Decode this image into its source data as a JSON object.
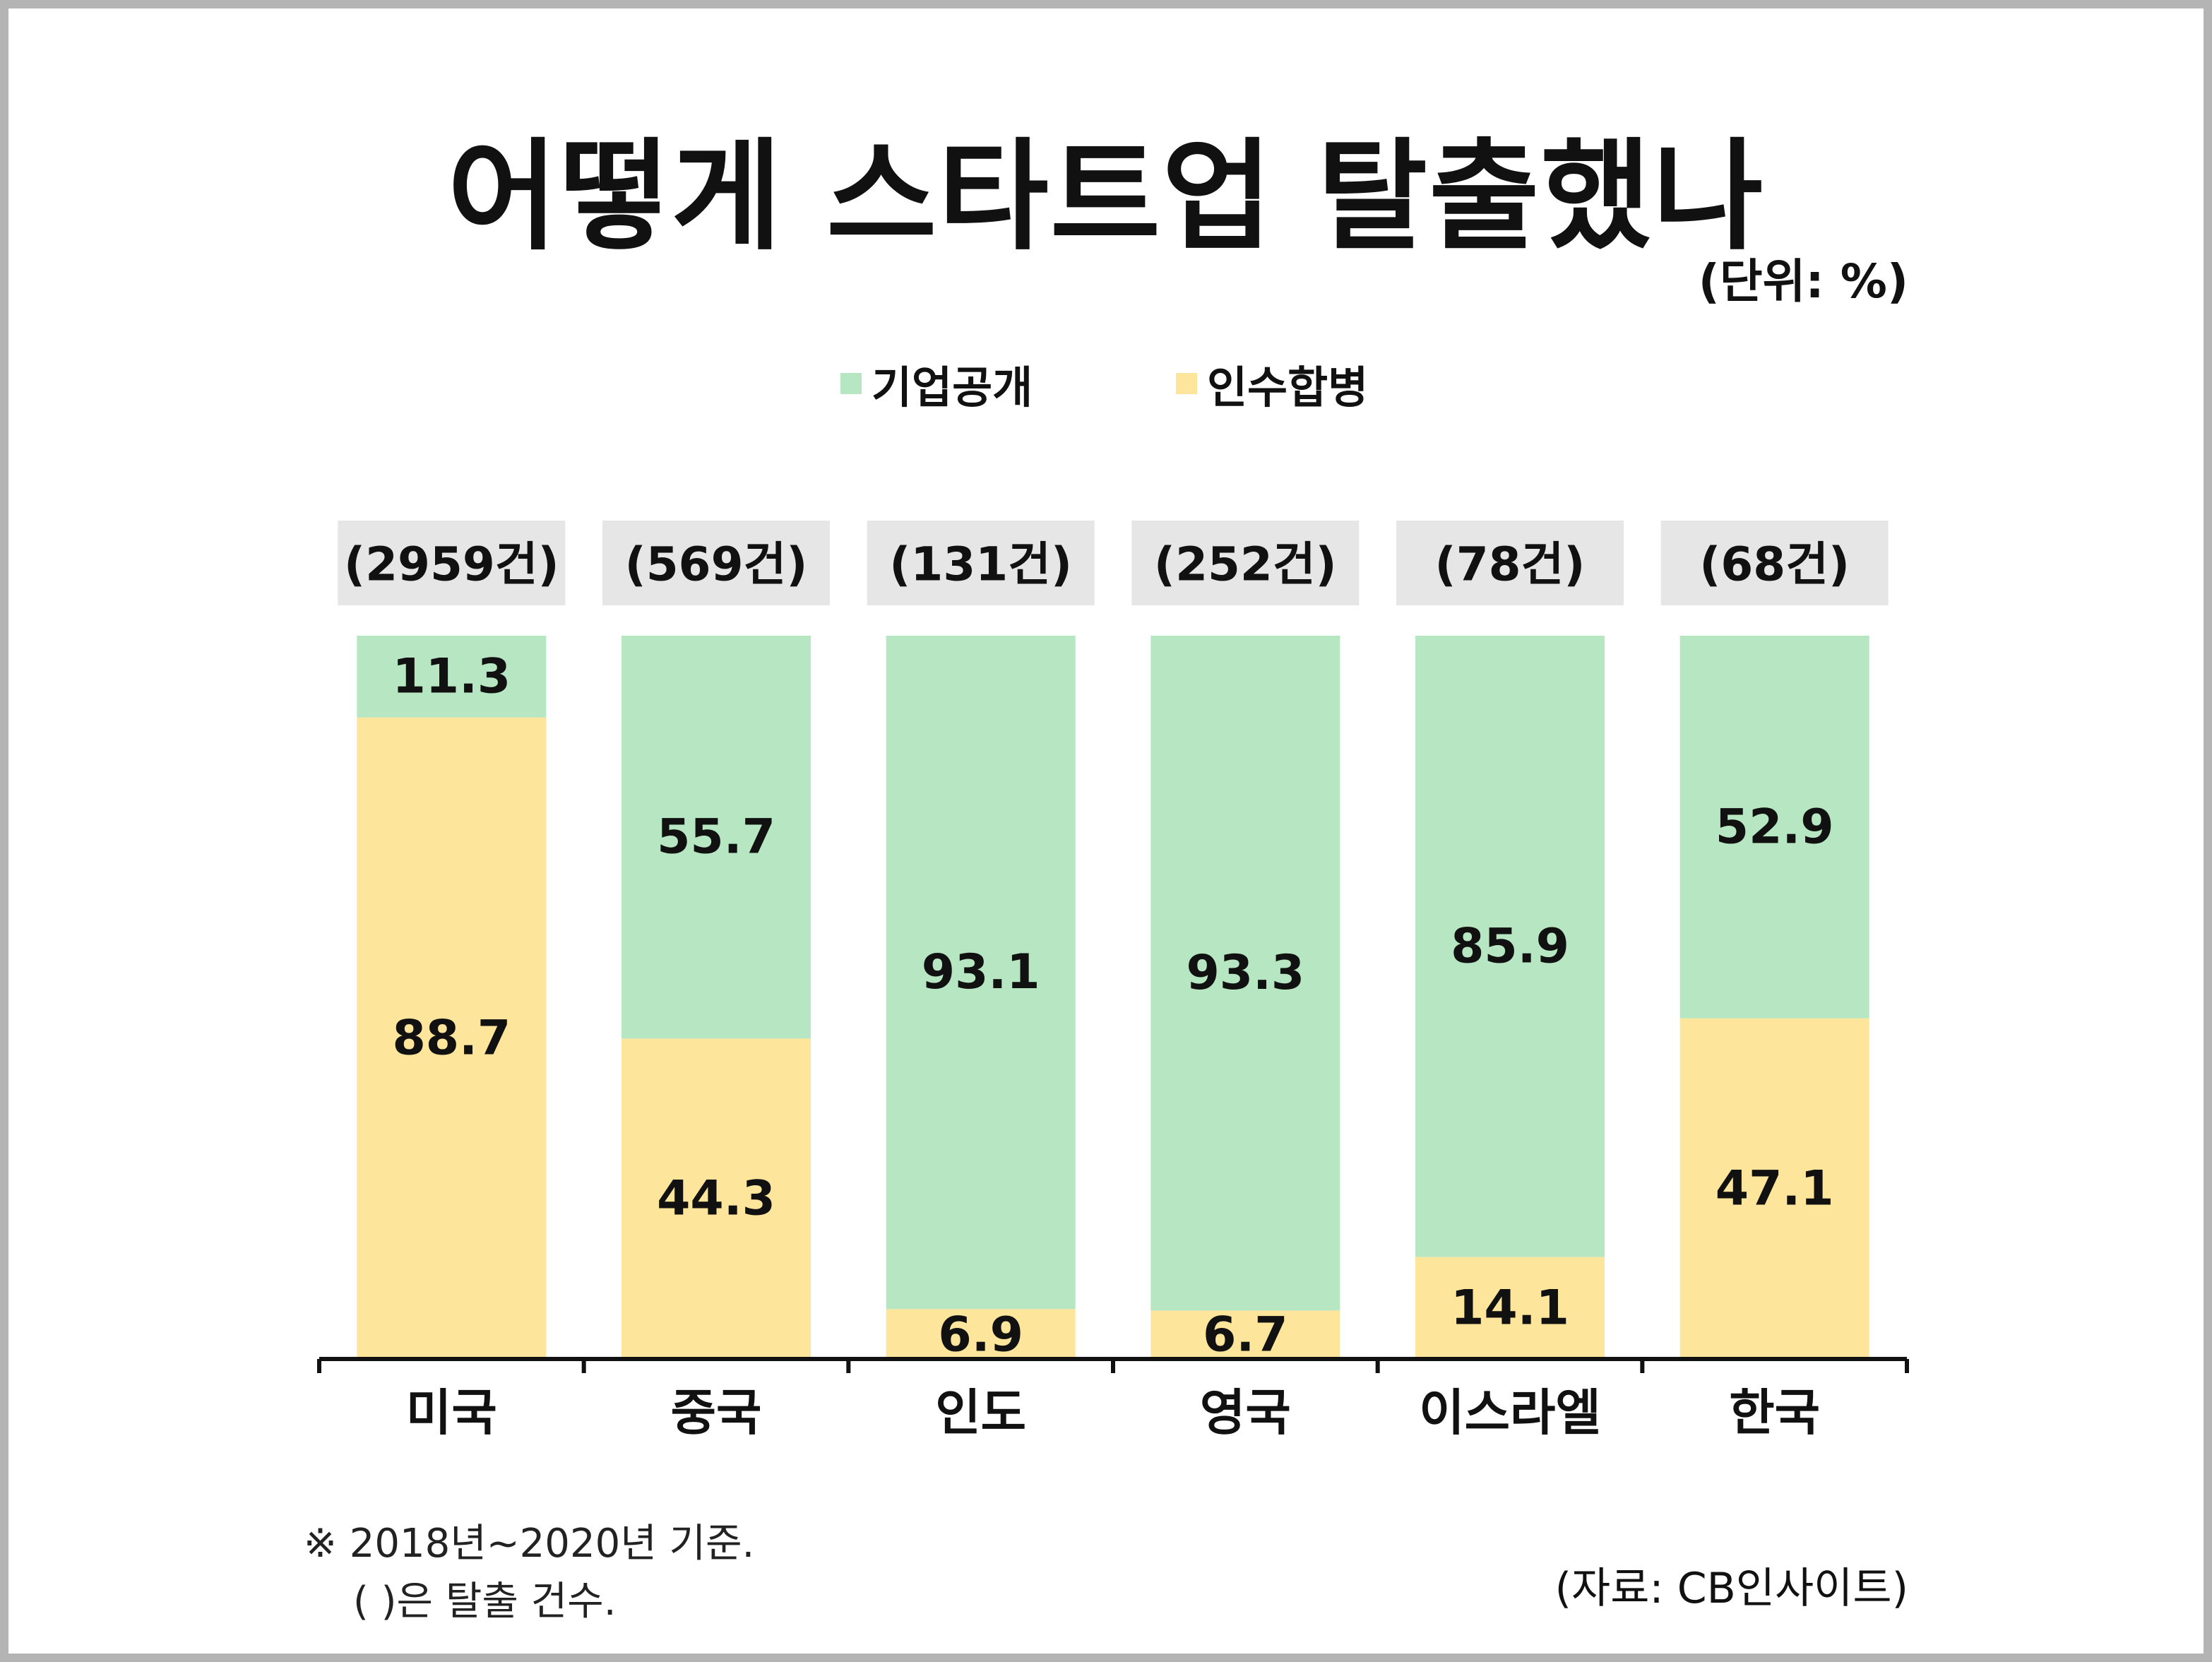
{
  "title": "어떻게 스타트업 탈출했나",
  "unit": "(단위: %)",
  "legend": [
    {
      "label": "기업공개",
      "color": "#b7e6c2"
    },
    {
      "label": "인수합병",
      "color": "#fde59b"
    }
  ],
  "chart_data": {
    "type": "bar",
    "stacked": true,
    "categories": [
      "미국",
      "중국",
      "인도",
      "영국",
      "이스라엘",
      "한국"
    ],
    "counts": [
      "(2959건)",
      "(569건)",
      "(131건)",
      "(252건)",
      "(78건)",
      "(68건)"
    ],
    "series": [
      {
        "name": "인수합병",
        "values": [
          88.7,
          44.3,
          6.9,
          6.7,
          14.1,
          47.1
        ],
        "color": "#fde59b"
      },
      {
        "name": "기업공개",
        "values": [
          11.3,
          55.7,
          93.1,
          93.3,
          85.9,
          52.9
        ],
        "color": "#b7e6c2"
      }
    ],
    "value_labels": {
      "인수합병": [
        "88.7",
        "44.3",
        "6.9",
        "6.7",
        "14.1",
        "47.1"
      ],
      "기업공개": [
        "11.3",
        "55.7",
        "93.1",
        "93.3",
        "85.9",
        "52.9"
      ]
    },
    "ylim": [
      0,
      100
    ],
    "grid": false,
    "legend_position": "top-center",
    "count_box_color": "#e6e6e6"
  },
  "notes": [
    "※ 2018년~2020년 기준.",
    "( )은 탈출 건수."
  ],
  "source": "(자료: CB인사이트)"
}
